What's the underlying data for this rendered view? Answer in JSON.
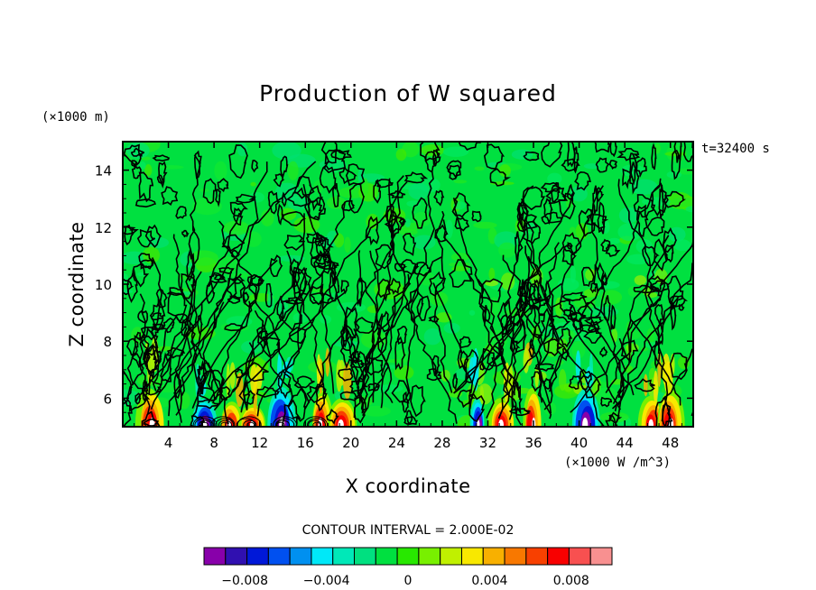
{
  "chart_data": {
    "type": "heatmap",
    "title": "Production of W squared",
    "xlabel": "X coordinate",
    "ylabel": "Z coordinate",
    "x_unit_label": "(×1000 m)",
    "value_unit_label": "(×1000 W /m^3)",
    "time_label": "t=32400 s",
    "contour_interval_label": "CONTOUR INTERVAL = 2.000E-02",
    "xlim": [
      0,
      50
    ],
    "ylim": [
      5,
      15
    ],
    "x_ticks": [
      4,
      8,
      12,
      16,
      20,
      24,
      28,
      32,
      36,
      40,
      44,
      48
    ],
    "x_tick_labels": [
      "4",
      "8",
      "12",
      "16",
      "20",
      "24",
      "28",
      "32",
      "36",
      "40",
      "44",
      "48"
    ],
    "y_ticks": [
      6,
      8,
      10,
      12,
      14
    ],
    "y_tick_labels": [
      "6",
      "8",
      "10",
      "12",
      "14"
    ],
    "colorbar": {
      "range": [
        -0.01,
        0.01
      ],
      "colors": [
        "#8800aa",
        "#3010b0",
        "#0018d8",
        "#0050f0",
        "#0090f0",
        "#00e8f8",
        "#00e8b8",
        "#00e080",
        "#00e040",
        "#28e800",
        "#78f000",
        "#c0f000",
        "#f8e800",
        "#f8b000",
        "#f87800",
        "#f84000",
        "#f80000",
        "#f85050",
        "#f89090"
      ],
      "tick_values": [
        -0.008,
        -0.004,
        0,
        0.004,
        0.008
      ],
      "tick_labels": [
        "−0.008",
        "−0.004",
        "0",
        "0.004",
        "0.008"
      ]
    },
    "background_color": "#00e040",
    "near_surface_hotspots_x": [
      2,
      7,
      9,
      11,
      14,
      17,
      19,
      31,
      33,
      36,
      41,
      46,
      48
    ],
    "notes": "Values are mostly near 0 (green) aloft; strong positive and negative production occurs near the lower boundary (z ≈ 5–6.5 km)."
  }
}
